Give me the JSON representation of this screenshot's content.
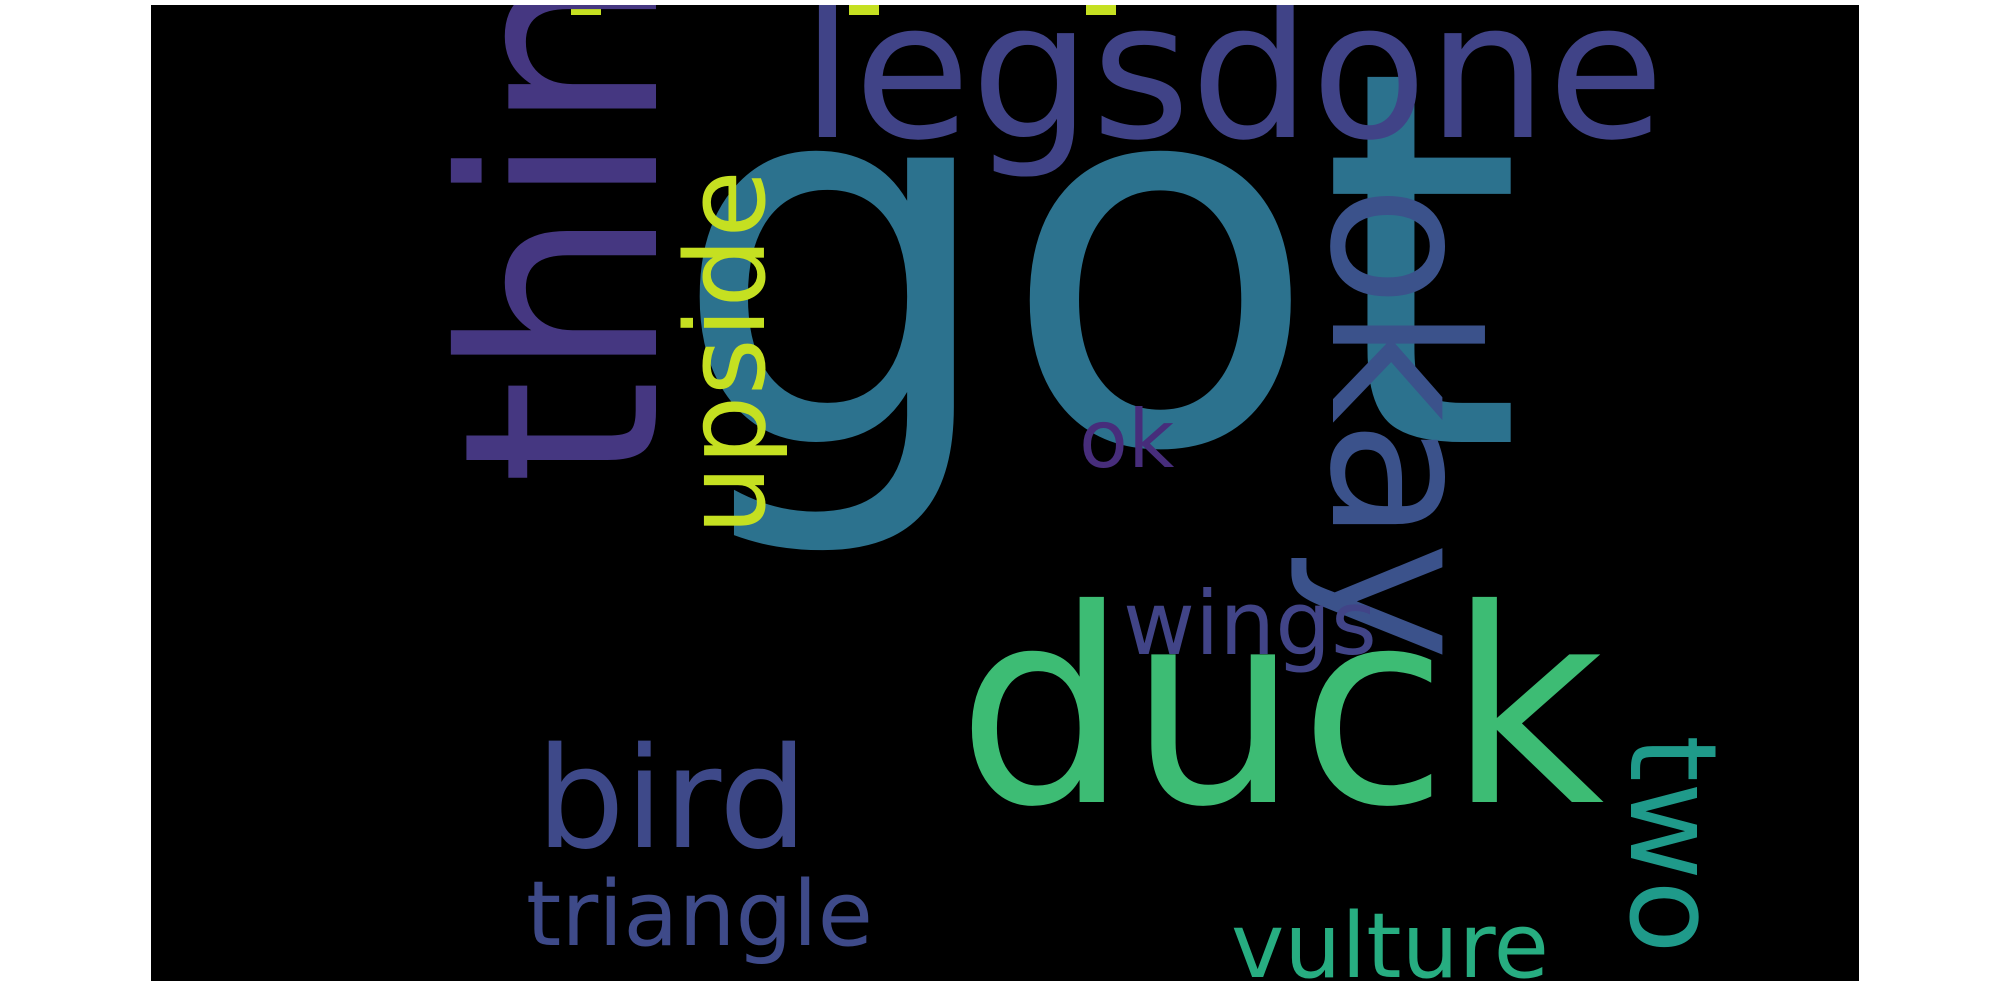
{
  "words": {
    "got": {
      "text": "got",
      "color": "#2c728e"
    },
    "duck": {
      "text": "duck",
      "color": "#3dbc74"
    },
    "think": {
      "text": "think",
      "color": "#453781"
    },
    "legsdone": {
      "text": "legsdone",
      "color": "#404387"
    },
    "okay": {
      "text": "okay",
      "color": "#3b528b"
    },
    "upside": {
      "text": "upside",
      "color": "#c5e021"
    },
    "bird": {
      "text": "bird",
      "color": "#3e4989"
    },
    "triangle": {
      "text": "triangle",
      "color": "#3e4a89"
    },
    "vulture": {
      "text": "vulture",
      "color": "#27ad81"
    },
    "wings": {
      "text": "wings",
      "color": "#414487"
    },
    "two": {
      "text": "two",
      "color": "#1f9a8a"
    },
    "ok": {
      "text": "ok",
      "color": "#472d7b"
    }
  },
  "background_color": "#000000"
}
